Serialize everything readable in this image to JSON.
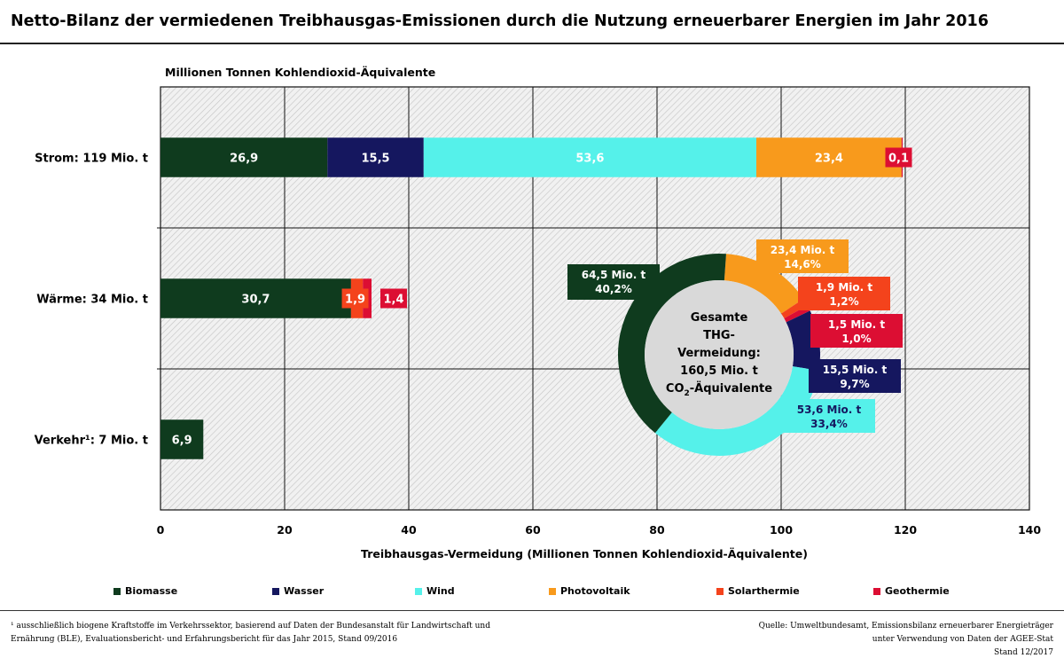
{
  "title": "Netto-Bilanz der vermiedenen Treibhausgas-Emissionen durch die Nutzung erneuerbarer Energien im Jahr 2016",
  "colors": {
    "Biomasse": "#0f3b1e",
    "Wasser": "#15175f",
    "Wind": "#55f1ea",
    "Photovoltaik": "#f89a1c",
    "Solarthermie": "#f4431c",
    "Geothermie": "#dc0e33"
  },
  "chart_data": [
    {
      "type": "bar",
      "orientation": "horizontal",
      "stacked": true,
      "title": "",
      "unit_label": "Millionen Tonnen Kohlendioxid-Äquivalente",
      "xlabel": "Treibhausgas-Vermeidung (Millionen Tonnen Kohlendioxid-Äquivalente)",
      "ylabel": "",
      "xlim": [
        0,
        140
      ],
      "xticks": [
        0,
        20,
        40,
        60,
        80,
        100,
        120,
        140
      ],
      "grid": true,
      "legend": "bottom",
      "categories": [
        "Strom: 119 Mio. t",
        "Wärme: 34 Mio. t",
        "Verkehr¹: 7 Mio. t"
      ],
      "series": [
        {
          "name": "Biomasse",
          "values": [
            26.9,
            30.7,
            6.9
          ],
          "labels": [
            "26,9",
            "30,7",
            "6,9"
          ]
        },
        {
          "name": "Wasser",
          "values": [
            15.5,
            null,
            null
          ],
          "labels": [
            "15,5",
            "",
            ""
          ]
        },
        {
          "name": "Wind",
          "values": [
            53.6,
            null,
            null
          ],
          "labels": [
            "53,6",
            "",
            ""
          ]
        },
        {
          "name": "Photovoltaik",
          "values": [
            23.4,
            null,
            null
          ],
          "labels": [
            "23,4",
            "",
            ""
          ]
        },
        {
          "name": "Solarthermie",
          "values": [
            null,
            1.9,
            null
          ],
          "labels": [
            "",
            "1,9",
            ""
          ]
        },
        {
          "name": "Geothermie",
          "values": [
            0.1,
            1.4,
            null
          ],
          "labels": [
            "0,1",
            "1,4",
            ""
          ]
        }
      ]
    },
    {
      "type": "pie",
      "donut": true,
      "center_lines": [
        "Gesamte",
        "THG-",
        "Vermeidung:",
        "160,5 Mio. t"
      ],
      "center_last_line": {
        "pre": "CO",
        "sub": "2",
        "post": "-Äquivalente"
      },
      "slices": [
        {
          "name": "Biomasse",
          "value": 64.5,
          "percent": 40.2,
          "label1": "64,5 Mio. t",
          "label2": "40,2%"
        },
        {
          "name": "Wind",
          "value": 53.6,
          "percent": 33.4,
          "label1": "53,6 Mio. t",
          "label2": "33,4%"
        },
        {
          "name": "Wasser",
          "value": 15.5,
          "percent": 9.7,
          "label1": "15,5 Mio. t",
          "label2": "9,7%"
        },
        {
          "name": "Geothermie",
          "value": 1.5,
          "percent": 1.0,
          "label1": "1,5 Mio. t",
          "label2": "1,0%"
        },
        {
          "name": "Solarthermie",
          "value": 1.9,
          "percent": 1.2,
          "label1": "1,9 Mio. t",
          "label2": "1,2%"
        },
        {
          "name": "Photovoltaik",
          "value": 23.4,
          "percent": 14.6,
          "label1": "23,4 Mio. t",
          "label2": "14,6%"
        }
      ]
    }
  ],
  "legend_items": [
    "Biomasse",
    "Wasser",
    "Wind",
    "Photovoltaik",
    "Solarthermie",
    "Geothermie"
  ],
  "footnote_lines": [
    "¹ ausschließlich biogene Kraftstoffe im Verkehrssektor, basierend auf Daten der Bundesanstalt für Landwirtschaft und",
    "Ernährung (BLE), Evaluationsbericht- und Erfahrungsbericht für das Jahr 2015, Stand 09/2016"
  ],
  "source_lines": [
    "Quelle: Umweltbundesamt, Emissionsbilanz erneuerbarer Energieträger",
    "unter Verwendung von Daten der AGEE-Stat",
    "Stand 12/2017"
  ]
}
